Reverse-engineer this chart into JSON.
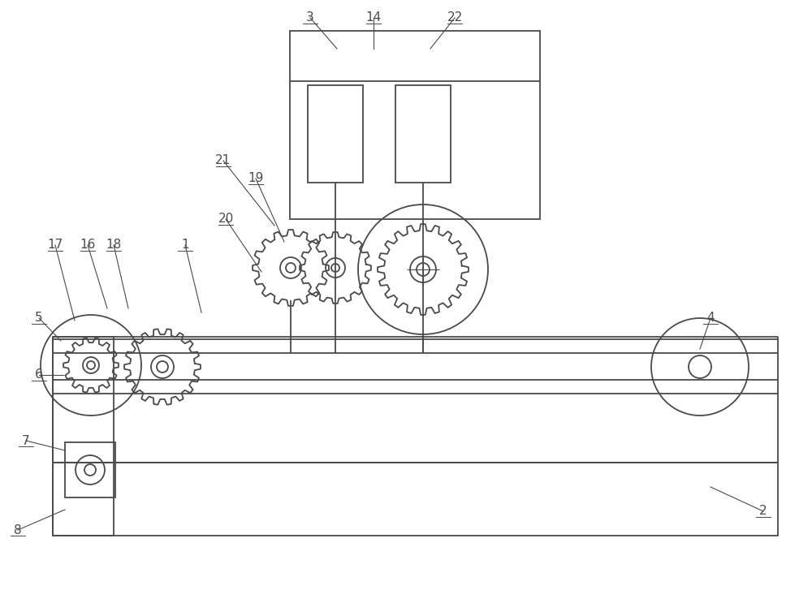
{
  "bg_color": "#ffffff",
  "line_color": "#4a4a4a",
  "line_width": 1.3,
  "thin_line": 0.8,
  "fig_width": 10.0,
  "fig_height": 7.27
}
